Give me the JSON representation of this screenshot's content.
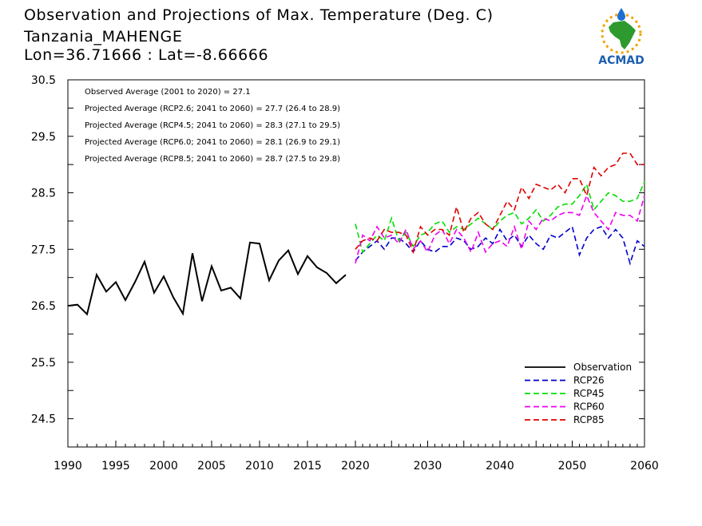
{
  "title": {
    "line1": "Observation and Projections of Max. Temperature (Deg. C)",
    "line2": "Tanzania_MAHENGE",
    "line3": "Lon=36.71666 : Lat=-8.66666"
  },
  "logo": {
    "text": "ACMAD"
  },
  "annotations": [
    "Observed Average (2001 to 2020) = 27.1",
    "Projected Average (RCP2.6; 2041 to 2060) = 27.7 (26.4 to 28.9)",
    "Projected Average (RCP4.5; 2041 to 2060) = 28.3 (27.1 to 29.5)",
    "Projected Average (RCP6.0; 2041 to 2060) = 28.1 (26.9 to 29.1)",
    "Projected Average (RCP8.5; 2041 to 2060) = 28.7 (27.5 to 29.8)"
  ],
  "colors": {
    "Observation": "#000000",
    "RCP26": "#0000cc",
    "RCP45": "#00e000",
    "RCP60": "#ee00ee",
    "RCP85": "#e00000"
  },
  "chart_data": {
    "type": "line",
    "ylim": [
      24,
      30.5
    ],
    "y_ticks": [
      "24.5",
      "25.5",
      "26.5",
      "27.5",
      "28.5",
      "29.5",
      "30.5"
    ],
    "x_ticks": [
      "1990",
      "1995",
      "2000",
      "2005",
      "2010",
      "2015",
      "2020",
      "2030",
      "2040",
      "2050",
      "2060"
    ],
    "x_axis_note": "piecewise scale: 1990-2020 wide, 2020-2060 compressed",
    "legend_position": "bottom-right",
    "series": [
      {
        "name": "Observation",
        "style": "solid",
        "x": [
          1990,
          1991,
          1992,
          1993,
          1994,
          1995,
          1996,
          1997,
          1998,
          1999,
          2000,
          2001,
          2002,
          2003,
          2004,
          2005,
          2006,
          2007,
          2008,
          2009,
          2010,
          2011,
          2012,
          2013,
          2014,
          2015,
          2016,
          2017,
          2018,
          2019
        ],
        "values": [
          26.5,
          26.52,
          26.35,
          27.05,
          26.75,
          26.92,
          26.6,
          26.92,
          27.28,
          26.73,
          27.02,
          26.65,
          26.36,
          27.43,
          26.58,
          27.2,
          26.77,
          26.82,
          26.63,
          27.62,
          27.6,
          26.95,
          27.3,
          27.48,
          27.06,
          27.38,
          27.18,
          27.08,
          26.9,
          27.05
        ]
      },
      {
        "name": "RCP26",
        "style": "dashed",
        "x": [
          2020,
          2021,
          2022,
          2023,
          2024,
          2025,
          2026,
          2027,
          2028,
          2029,
          2030,
          2031,
          2032,
          2033,
          2034,
          2035,
          2036,
          2037,
          2038,
          2039,
          2040,
          2041,
          2042,
          2043,
          2044,
          2045,
          2046,
          2047,
          2048,
          2049,
          2050,
          2051,
          2052,
          2053,
          2054,
          2055,
          2056,
          2057,
          2058,
          2059,
          2060
        ],
        "values": [
          27.3,
          27.45,
          27.55,
          27.65,
          27.5,
          27.7,
          27.7,
          27.6,
          27.45,
          27.65,
          27.5,
          27.45,
          27.55,
          27.55,
          27.7,
          27.65,
          27.5,
          27.55,
          27.7,
          27.6,
          27.85,
          27.65,
          27.75,
          27.55,
          27.75,
          27.6,
          27.5,
          27.75,
          27.7,
          27.8,
          27.9,
          27.4,
          27.7,
          27.85,
          27.9,
          27.7,
          27.85,
          27.7,
          27.25,
          27.65,
          27.55
        ]
      },
      {
        "name": "RCP45",
        "style": "dashed",
        "x": [
          2020,
          2021,
          2022,
          2023,
          2024,
          2025,
          2026,
          2027,
          2028,
          2029,
          2030,
          2031,
          2032,
          2033,
          2034,
          2035,
          2036,
          2037,
          2038,
          2039,
          2040,
          2041,
          2042,
          2043,
          2044,
          2045,
          2046,
          2047,
          2048,
          2049,
          2050,
          2051,
          2052,
          2053,
          2054,
          2055,
          2056,
          2057,
          2058,
          2059,
          2060
        ],
        "values": [
          27.95,
          27.45,
          27.6,
          27.75,
          27.65,
          28.05,
          27.65,
          27.8,
          27.55,
          27.75,
          27.8,
          27.95,
          28.0,
          27.8,
          27.9,
          27.85,
          27.95,
          28.05,
          27.95,
          27.85,
          28.0,
          28.1,
          28.15,
          27.95,
          28.05,
          28.2,
          28.0,
          28.1,
          28.25,
          28.3,
          28.3,
          28.45,
          28.65,
          28.2,
          28.35,
          28.5,
          28.45,
          28.35,
          28.35,
          28.4,
          28.7
        ]
      },
      {
        "name": "RCP60",
        "style": "dashed",
        "x": [
          2020,
          2021,
          2022,
          2023,
          2024,
          2025,
          2026,
          2027,
          2028,
          2029,
          2030,
          2031,
          2032,
          2033,
          2034,
          2035,
          2036,
          2037,
          2038,
          2039,
          2040,
          2041,
          2042,
          2043,
          2044,
          2045,
          2046,
          2047,
          2048,
          2049,
          2050,
          2051,
          2052,
          2053,
          2054,
          2055,
          2056,
          2057,
          2058,
          2059,
          2060
        ],
        "values": [
          27.25,
          27.75,
          27.65,
          27.9,
          27.7,
          27.75,
          27.6,
          27.85,
          27.5,
          27.65,
          27.45,
          27.75,
          27.85,
          27.6,
          27.85,
          27.7,
          27.45,
          27.8,
          27.45,
          27.6,
          27.65,
          27.55,
          27.9,
          27.5,
          28.0,
          27.85,
          28.05,
          28.0,
          28.1,
          28.15,
          28.15,
          28.1,
          28.45,
          28.15,
          28.0,
          27.85,
          28.15,
          28.1,
          28.1,
          28.0,
          28.45
        ]
      },
      {
        "name": "RCP85",
        "style": "dashed",
        "x": [
          2020,
          2021,
          2022,
          2023,
          2024,
          2025,
          2026,
          2027,
          2028,
          2029,
          2030,
          2031,
          2032,
          2033,
          2034,
          2035,
          2036,
          2037,
          2038,
          2039,
          2040,
          2041,
          2042,
          2043,
          2044,
          2045,
          2046,
          2047,
          2048,
          2049,
          2050,
          2051,
          2052,
          2053,
          2054,
          2055,
          2056,
          2057,
          2058,
          2059,
          2060
        ],
        "values": [
          27.5,
          27.65,
          27.7,
          27.65,
          27.85,
          27.8,
          27.8,
          27.75,
          27.45,
          27.9,
          27.75,
          27.85,
          27.85,
          27.75,
          28.25,
          27.8,
          28.05,
          28.15,
          27.95,
          27.85,
          28.1,
          28.35,
          28.2,
          28.6,
          28.4,
          28.65,
          28.6,
          28.55,
          28.65,
          28.5,
          28.75,
          28.75,
          28.45,
          28.95,
          28.8,
          28.95,
          29.0,
          29.2,
          29.2,
          29.0,
          29.0
        ]
      }
    ]
  }
}
